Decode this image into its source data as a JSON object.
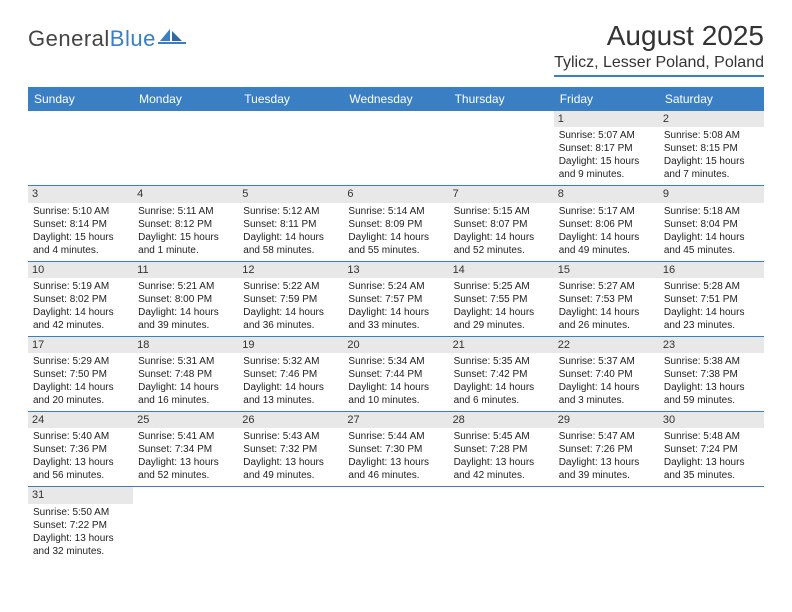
{
  "logo": {
    "word1": "General",
    "word2": "Blue"
  },
  "title": "August 2025",
  "location": "Tylicz, Lesser Poland, Poland",
  "colors": {
    "header_bg": "#3a7fc4",
    "header_text": "#ffffff",
    "daynum_bg": "#e8e8e8",
    "text": "#222222",
    "border": "#3a7fc4"
  },
  "day_headers": [
    "Sunday",
    "Monday",
    "Tuesday",
    "Wednesday",
    "Thursday",
    "Friday",
    "Saturday"
  ],
  "weeks": [
    [
      {
        "n": "",
        "lines": []
      },
      {
        "n": "",
        "lines": []
      },
      {
        "n": "",
        "lines": []
      },
      {
        "n": "",
        "lines": []
      },
      {
        "n": "",
        "lines": []
      },
      {
        "n": "1",
        "lines": [
          "Sunrise: 5:07 AM",
          "Sunset: 8:17 PM",
          "Daylight: 15 hours",
          "and 9 minutes."
        ]
      },
      {
        "n": "2",
        "lines": [
          "Sunrise: 5:08 AM",
          "Sunset: 8:15 PM",
          "Daylight: 15 hours",
          "and 7 minutes."
        ]
      }
    ],
    [
      {
        "n": "3",
        "lines": [
          "Sunrise: 5:10 AM",
          "Sunset: 8:14 PM",
          "Daylight: 15 hours",
          "and 4 minutes."
        ]
      },
      {
        "n": "4",
        "lines": [
          "Sunrise: 5:11 AM",
          "Sunset: 8:12 PM",
          "Daylight: 15 hours",
          "and 1 minute."
        ]
      },
      {
        "n": "5",
        "lines": [
          "Sunrise: 5:12 AM",
          "Sunset: 8:11 PM",
          "Daylight: 14 hours",
          "and 58 minutes."
        ]
      },
      {
        "n": "6",
        "lines": [
          "Sunrise: 5:14 AM",
          "Sunset: 8:09 PM",
          "Daylight: 14 hours",
          "and 55 minutes."
        ]
      },
      {
        "n": "7",
        "lines": [
          "Sunrise: 5:15 AM",
          "Sunset: 8:07 PM",
          "Daylight: 14 hours",
          "and 52 minutes."
        ]
      },
      {
        "n": "8",
        "lines": [
          "Sunrise: 5:17 AM",
          "Sunset: 8:06 PM",
          "Daylight: 14 hours",
          "and 49 minutes."
        ]
      },
      {
        "n": "9",
        "lines": [
          "Sunrise: 5:18 AM",
          "Sunset: 8:04 PM",
          "Daylight: 14 hours",
          "and 45 minutes."
        ]
      }
    ],
    [
      {
        "n": "10",
        "lines": [
          "Sunrise: 5:19 AM",
          "Sunset: 8:02 PM",
          "Daylight: 14 hours",
          "and 42 minutes."
        ]
      },
      {
        "n": "11",
        "lines": [
          "Sunrise: 5:21 AM",
          "Sunset: 8:00 PM",
          "Daylight: 14 hours",
          "and 39 minutes."
        ]
      },
      {
        "n": "12",
        "lines": [
          "Sunrise: 5:22 AM",
          "Sunset: 7:59 PM",
          "Daylight: 14 hours",
          "and 36 minutes."
        ]
      },
      {
        "n": "13",
        "lines": [
          "Sunrise: 5:24 AM",
          "Sunset: 7:57 PM",
          "Daylight: 14 hours",
          "and 33 minutes."
        ]
      },
      {
        "n": "14",
        "lines": [
          "Sunrise: 5:25 AM",
          "Sunset: 7:55 PM",
          "Daylight: 14 hours",
          "and 29 minutes."
        ]
      },
      {
        "n": "15",
        "lines": [
          "Sunrise: 5:27 AM",
          "Sunset: 7:53 PM",
          "Daylight: 14 hours",
          "and 26 minutes."
        ]
      },
      {
        "n": "16",
        "lines": [
          "Sunrise: 5:28 AM",
          "Sunset: 7:51 PM",
          "Daylight: 14 hours",
          "and 23 minutes."
        ]
      }
    ],
    [
      {
        "n": "17",
        "lines": [
          "Sunrise: 5:29 AM",
          "Sunset: 7:50 PM",
          "Daylight: 14 hours",
          "and 20 minutes."
        ]
      },
      {
        "n": "18",
        "lines": [
          "Sunrise: 5:31 AM",
          "Sunset: 7:48 PM",
          "Daylight: 14 hours",
          "and 16 minutes."
        ]
      },
      {
        "n": "19",
        "lines": [
          "Sunrise: 5:32 AM",
          "Sunset: 7:46 PM",
          "Daylight: 14 hours",
          "and 13 minutes."
        ]
      },
      {
        "n": "20",
        "lines": [
          "Sunrise: 5:34 AM",
          "Sunset: 7:44 PM",
          "Daylight: 14 hours",
          "and 10 minutes."
        ]
      },
      {
        "n": "21",
        "lines": [
          "Sunrise: 5:35 AM",
          "Sunset: 7:42 PM",
          "Daylight: 14 hours",
          "and 6 minutes."
        ]
      },
      {
        "n": "22",
        "lines": [
          "Sunrise: 5:37 AM",
          "Sunset: 7:40 PM",
          "Daylight: 14 hours",
          "and 3 minutes."
        ]
      },
      {
        "n": "23",
        "lines": [
          "Sunrise: 5:38 AM",
          "Sunset: 7:38 PM",
          "Daylight: 13 hours",
          "and 59 minutes."
        ]
      }
    ],
    [
      {
        "n": "24",
        "lines": [
          "Sunrise: 5:40 AM",
          "Sunset: 7:36 PM",
          "Daylight: 13 hours",
          "and 56 minutes."
        ]
      },
      {
        "n": "25",
        "lines": [
          "Sunrise: 5:41 AM",
          "Sunset: 7:34 PM",
          "Daylight: 13 hours",
          "and 52 minutes."
        ]
      },
      {
        "n": "26",
        "lines": [
          "Sunrise: 5:43 AM",
          "Sunset: 7:32 PM",
          "Daylight: 13 hours",
          "and 49 minutes."
        ]
      },
      {
        "n": "27",
        "lines": [
          "Sunrise: 5:44 AM",
          "Sunset: 7:30 PM",
          "Daylight: 13 hours",
          "and 46 minutes."
        ]
      },
      {
        "n": "28",
        "lines": [
          "Sunrise: 5:45 AM",
          "Sunset: 7:28 PM",
          "Daylight: 13 hours",
          "and 42 minutes."
        ]
      },
      {
        "n": "29",
        "lines": [
          "Sunrise: 5:47 AM",
          "Sunset: 7:26 PM",
          "Daylight: 13 hours",
          "and 39 minutes."
        ]
      },
      {
        "n": "30",
        "lines": [
          "Sunrise: 5:48 AM",
          "Sunset: 7:24 PM",
          "Daylight: 13 hours",
          "and 35 minutes."
        ]
      }
    ],
    [
      {
        "n": "31",
        "lines": [
          "Sunrise: 5:50 AM",
          "Sunset: 7:22 PM",
          "Daylight: 13 hours",
          "and 32 minutes."
        ]
      },
      {
        "n": "",
        "lines": []
      },
      {
        "n": "",
        "lines": []
      },
      {
        "n": "",
        "lines": []
      },
      {
        "n": "",
        "lines": []
      },
      {
        "n": "",
        "lines": []
      },
      {
        "n": "",
        "lines": []
      }
    ]
  ]
}
